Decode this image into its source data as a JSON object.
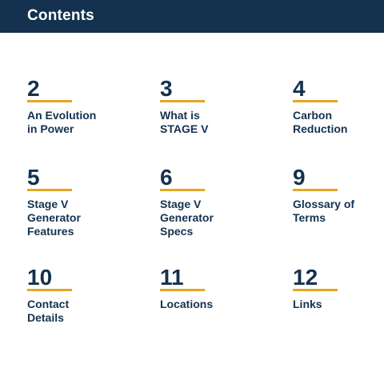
{
  "header": {
    "title": "Contents"
  },
  "accent_color": "#e4a623",
  "brand_color": "#14324f",
  "items": [
    {
      "number": "2",
      "label": "An Evolution\nin Power"
    },
    {
      "number": "3",
      "label": "What is\nSTAGE V"
    },
    {
      "number": "4",
      "label": "Carbon\nReduction"
    },
    {
      "number": "5",
      "label": "Stage V\nGenerator\nFeatures"
    },
    {
      "number": "6",
      "label": "Stage V\nGenerator\nSpecs"
    },
    {
      "number": "9",
      "label": "Glossary of\nTerms"
    },
    {
      "number": "10",
      "label": "Contact\nDetails"
    },
    {
      "number": "11",
      "label": "Locations"
    },
    {
      "number": "12",
      "label": "Links"
    }
  ]
}
